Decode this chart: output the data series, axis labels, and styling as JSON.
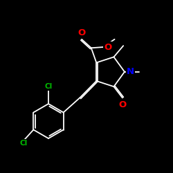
{
  "background": "#000000",
  "bond_color": "#ffffff",
  "atom_colors": {
    "O": "#ff0000",
    "N": "#0000ff",
    "Cl": "#00bb00",
    "C": "#ffffff"
  },
  "lw": 1.3,
  "fs": 8.5
}
